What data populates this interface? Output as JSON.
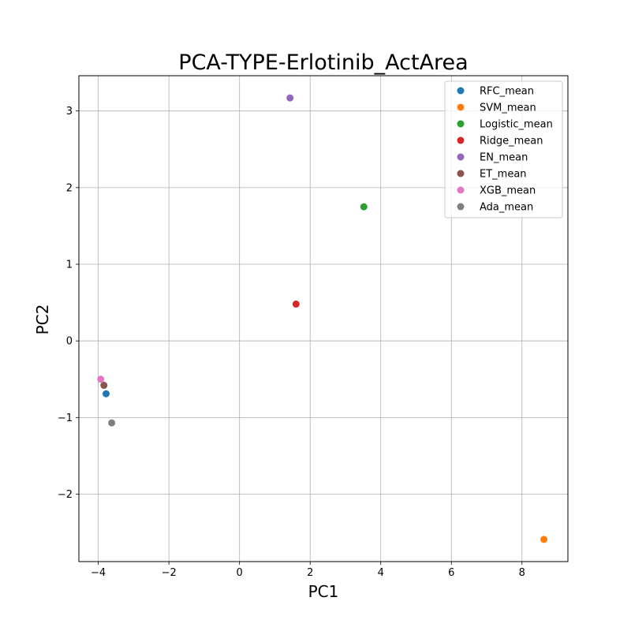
{
  "chart_data": {
    "type": "scatter",
    "title": "PCA-TYPE-Erlotinib_ActArea",
    "xlabel": "PC1",
    "ylabel": "PC2",
    "xlim": [
      -4.55,
      9.3
    ],
    "ylim": [
      -2.88,
      3.46
    ],
    "xticks": [
      -4,
      -2,
      0,
      2,
      4,
      6,
      8
    ],
    "yticks": [
      -2,
      -1,
      0,
      1,
      2,
      3
    ],
    "xtick_labels": [
      "−4",
      "−2",
      "0",
      "2",
      "4",
      "6",
      "8"
    ],
    "ytick_labels": [
      "−2",
      "−1",
      "0",
      "1",
      "2",
      "3"
    ],
    "grid": true,
    "legend_position": "top-right",
    "series": [
      {
        "name": "RFC_mean",
        "color": "#1f77b4",
        "x": -3.78,
        "y": -0.69
      },
      {
        "name": "SVM_mean",
        "color": "#ff7f0e",
        "x": 8.62,
        "y": -2.59
      },
      {
        "name": "Logistic_mean",
        "color": "#2ca02c",
        "x": 3.52,
        "y": 1.75
      },
      {
        "name": "Ridge_mean",
        "color": "#d62728",
        "x": 1.6,
        "y": 0.48
      },
      {
        "name": "EN_mean",
        "color": "#9467bd",
        "x": 1.43,
        "y": 3.17
      },
      {
        "name": "ET_mean",
        "color": "#8c564b",
        "x": -3.84,
        "y": -0.58
      },
      {
        "name": "XGB_mean",
        "color": "#e377c2",
        "x": -3.93,
        "y": -0.5
      },
      {
        "name": "Ada_mean",
        "color": "#7f7f7f",
        "x": -3.62,
        "y": -1.07
      }
    ]
  }
}
